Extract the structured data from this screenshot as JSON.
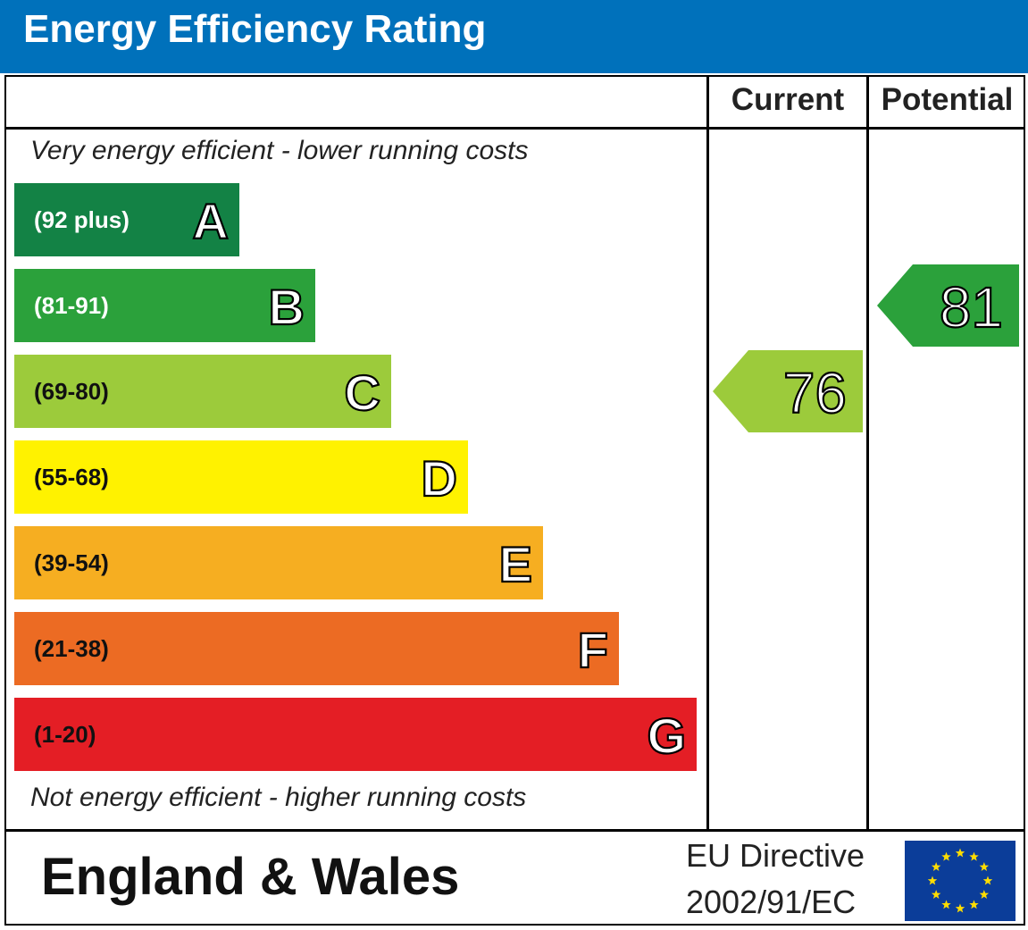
{
  "title": "Energy Efficiency Rating",
  "columns": {
    "current": "Current",
    "potential": "Potential"
  },
  "top_note": "Very energy efficient - lower running costs",
  "bottom_note": "Not energy efficient - higher running costs",
  "footer": {
    "region": "England & Wales",
    "directive_line1": "EU Directive",
    "directive_line2": "2002/91/EC"
  },
  "chart_data": {
    "type": "bar",
    "categories": [
      "A",
      "B",
      "C",
      "D",
      "E",
      "F",
      "G"
    ],
    "ranges": [
      "(92 plus)",
      "(81-91)",
      "(69-80)",
      "(55-68)",
      "(39-54)",
      "(21-38)",
      "(1-20)"
    ],
    "colors": [
      "#138245",
      "#2ba13b",
      "#9ccb3b",
      "#fff200",
      "#f6ae21",
      "#ec6b23",
      "#e41e25"
    ],
    "label_colors": [
      "#ffffff",
      "#ffffff",
      "#111111",
      "#111111",
      "#111111",
      "#111111",
      "#111111"
    ],
    "current": {
      "value": 76,
      "band": "C",
      "color": "#9ccb3b"
    },
    "potential": {
      "value": 81,
      "band": "B",
      "color": "#2ba13b"
    }
  }
}
